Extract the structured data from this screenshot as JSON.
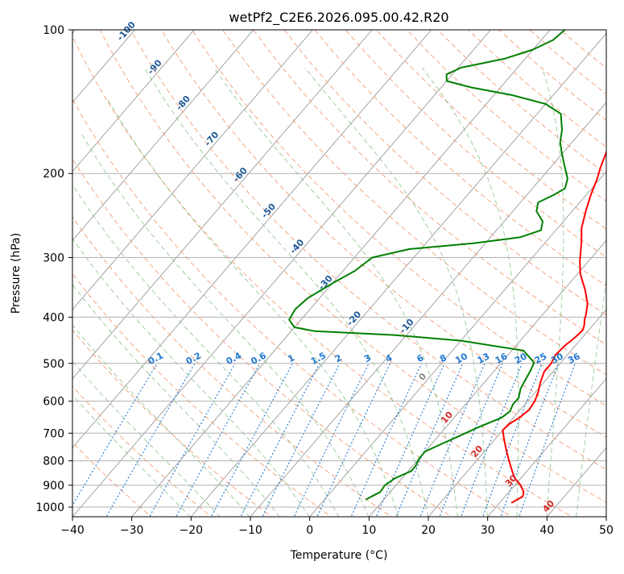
{
  "chart_data": {
    "type": "line",
    "chart_kind": "skew-t log-p diagram",
    "title": "wetPf2_C2E6.2026.095.00.42.R20",
    "xlabel": "Temperature (°C)",
    "ylabel": "Pressure (hPa)",
    "xlim": [
      -40,
      50
    ],
    "ylim": [
      1050,
      100
    ],
    "y_scale": "log",
    "grid": true,
    "x_ticks": [
      -40,
      -30,
      -20,
      -10,
      0,
      10,
      20,
      30,
      40,
      50
    ],
    "y_ticks": [
      100,
      200,
      300,
      400,
      500,
      600,
      700,
      800,
      900,
      1000
    ],
    "series": [
      {
        "color": "#ff0000",
        "points": [
          [
            32.0,
            980
          ],
          [
            33.0,
            950
          ],
          [
            32.5,
            930
          ],
          [
            31.0,
            900
          ],
          [
            29.0,
            870
          ],
          [
            27.5,
            840
          ],
          [
            25.5,
            800
          ],
          [
            23.5,
            760
          ],
          [
            21.5,
            720
          ],
          [
            20.0,
            690
          ],
          [
            20.2,
            670
          ],
          [
            21.0,
            650
          ],
          [
            21.5,
            625
          ],
          [
            21.2,
            600
          ],
          [
            20.5,
            575
          ],
          [
            19.5,
            550
          ],
          [
            18.5,
            520
          ],
          [
            18.5,
            500
          ],
          [
            18.0,
            480
          ],
          [
            18.2,
            460
          ],
          [
            18.8,
            440
          ],
          [
            19.0,
            425
          ],
          [
            18.5,
            415
          ],
          [
            17.8,
            405
          ],
          [
            17.3,
            395
          ],
          [
            16.0,
            375
          ],
          [
            13.5,
            350
          ],
          [
            10.5,
            325
          ],
          [
            8.5,
            305
          ],
          [
            6.2,
            280
          ],
          [
            4.0,
            260
          ],
          [
            2.3,
            240
          ],
          [
            0.8,
            222
          ],
          [
            -0.5,
            205
          ],
          [
            -1.5,
            195
          ],
          [
            -3.0,
            178
          ],
          [
            -4.5,
            160
          ],
          [
            -5.5,
            148
          ],
          [
            -6.0,
            140
          ],
          [
            -5.5,
            133
          ],
          [
            -4.5,
            127
          ],
          [
            -4.0,
            120
          ],
          [
            -5.0,
            110
          ],
          [
            -6.0,
            100
          ]
        ]
      },
      {
        "color": "#008000",
        "points": [
          [
            7.0,
            965
          ],
          [
            7.5,
            950
          ],
          [
            8.3,
            930
          ],
          [
            8.1,
            900
          ],
          [
            8.8,
            870
          ],
          [
            10.5,
            840
          ],
          [
            10.5,
            820
          ],
          [
            10.0,
            790
          ],
          [
            10.0,
            765
          ],
          [
            11.5,
            740
          ],
          [
            13.5,
            710
          ],
          [
            15.5,
            680
          ],
          [
            18.0,
            650
          ],
          [
            18.5,
            630
          ],
          [
            18.0,
            610
          ],
          [
            18.0,
            590
          ],
          [
            17.0,
            565
          ],
          [
            16.5,
            540
          ],
          [
            16.0,
            515
          ],
          [
            15.5,
            498
          ],
          [
            12.0,
            470
          ],
          [
            0.0,
            448
          ],
          [
            -12.0,
            436
          ],
          [
            -26.0,
            428
          ],
          [
            -30.0,
            420
          ],
          [
            -32.0,
            405
          ],
          [
            -32.5,
            385
          ],
          [
            -32.0,
            365
          ],
          [
            -30.0,
            340
          ],
          [
            -28.0,
            320
          ],
          [
            -27.0,
            300
          ],
          [
            -22.0,
            288
          ],
          [
            -12.0,
            280
          ],
          [
            -5.0,
            272
          ],
          [
            -2.5,
            263
          ],
          [
            -3.5,
            252
          ],
          [
            -6.0,
            240
          ],
          [
            -7.0,
            230
          ],
          [
            -5.5,
            222
          ],
          [
            -4.5,
            215
          ],
          [
            -5.5,
            205
          ],
          [
            -8.0,
            192
          ],
          [
            -10.0,
            182
          ],
          [
            -12.0,
            172
          ],
          [
            -13.5,
            162
          ],
          [
            -16.0,
            150
          ],
          [
            -20.0,
            143
          ],
          [
            -27.0,
            137
          ],
          [
            -35.0,
            132
          ],
          [
            -40.0,
            128
          ],
          [
            -41.0,
            124
          ],
          [
            -39.5,
            120
          ],
          [
            -33.5,
            115
          ],
          [
            -30.0,
            110
          ],
          [
            -28.0,
            105
          ],
          [
            -27.5,
            100
          ]
        ]
      }
    ],
    "dry_adiabat_labels": [
      "-100",
      "-90",
      "-80",
      "-70",
      "-60",
      "-50",
      "-40",
      "-30",
      "-20",
      "-10",
      "0",
      "10",
      "20",
      "30",
      "40"
    ],
    "mixing_ratio_labels": [
      "0.1",
      "0.2",
      "0.4",
      "0.6",
      "1",
      "1.5",
      "2",
      "3",
      "4",
      "6",
      "8",
      "10",
      "13",
      "16",
      "20",
      "25",
      "30",
      "36"
    ],
    "colors": {
      "temperature": "#ff0000",
      "dewpoint": "#008000",
      "grid": "#b0b0b0",
      "skew_isotherm": "#9a9a9a",
      "dry_adiabat": "#f4a582",
      "moist_adiabat": "#7fbf7b",
      "mixing_ratio": "#1f78d1",
      "dry_label_cold": "#1f5a99",
      "dry_label_warm": "#d62728",
      "mr_label": "#1f78d1"
    }
  }
}
